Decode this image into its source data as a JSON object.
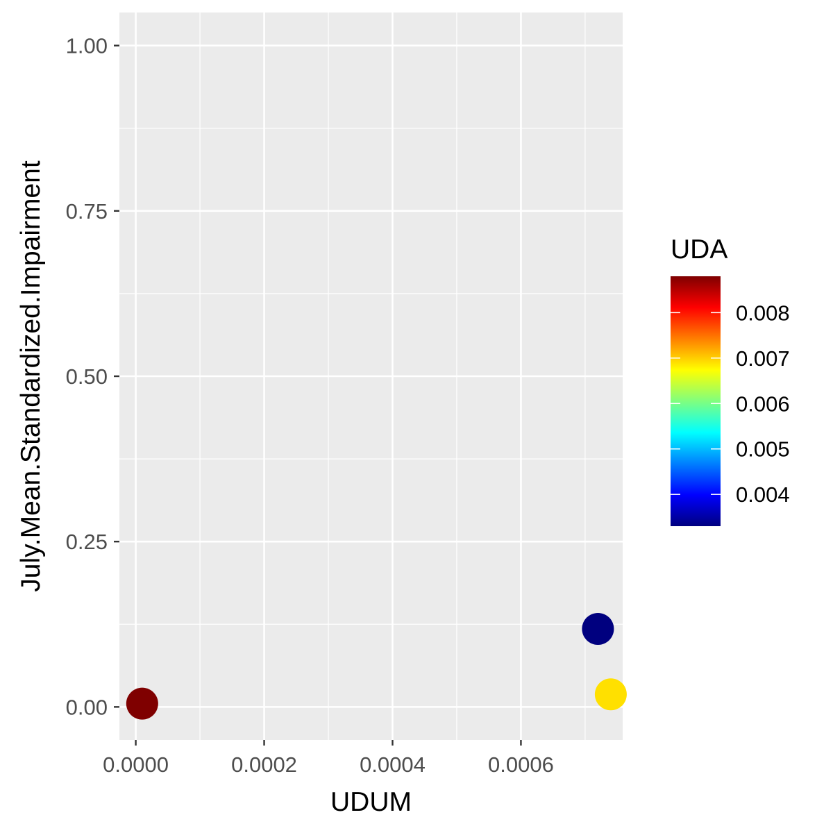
{
  "chart_data": {
    "type": "scatter",
    "title": "",
    "xlabel": "UDUM",
    "ylabel": "July.Mean.Standardized.Impairment",
    "xlim": [
      -2.55e-05,
      0.0007585
    ],
    "ylim": [
      -0.05,
      1.05
    ],
    "x_ticks": [
      {
        "value": 0.0,
        "label": "0.0000"
      },
      {
        "value": 0.0002,
        "label": "0.0002"
      },
      {
        "value": 0.0004,
        "label": "0.0004"
      },
      {
        "value": 0.0006,
        "label": "0.0006"
      }
    ],
    "y_ticks": [
      {
        "value": 0.0,
        "label": "0.00"
      },
      {
        "value": 0.25,
        "label": "0.25"
      },
      {
        "value": 0.5,
        "label": "0.50"
      },
      {
        "value": 0.75,
        "label": "0.75"
      },
      {
        "value": 1.0,
        "label": "1.00"
      }
    ],
    "grid": true,
    "points": [
      {
        "x": 1e-05,
        "y": 0.005,
        "color_value": 0.0088,
        "color": "#7F0000"
      },
      {
        "x": 0.00072,
        "y": 0.118,
        "color_value": 0.0033,
        "color": "#00007F"
      },
      {
        "x": 0.00074,
        "y": 0.019,
        "color_value": 0.0071,
        "color": "#FFE000"
      }
    ],
    "legend": {
      "title": "UDA",
      "placement": "right",
      "type": "colorbar",
      "range": [
        0.0033,
        0.0088
      ],
      "ticks": [
        {
          "value": 0.004,
          "label": "0.004"
        },
        {
          "value": 0.005,
          "label": "0.005"
        },
        {
          "value": 0.006,
          "label": "0.006"
        },
        {
          "value": 0.007,
          "label": "0.007"
        },
        {
          "value": 0.008,
          "label": "0.008"
        }
      ],
      "colormap": [
        "#00007F",
        "#0000FF",
        "#007FFF",
        "#00FFFF",
        "#7FFF7F",
        "#FFFF00",
        "#FF7F00",
        "#FF0000",
        "#7F0000"
      ]
    },
    "colors": {
      "panel_background": "#EBEBEB",
      "grid": "#FFFFFF",
      "axis_text": "#4D4D4D",
      "axis_title": "#000000"
    }
  }
}
